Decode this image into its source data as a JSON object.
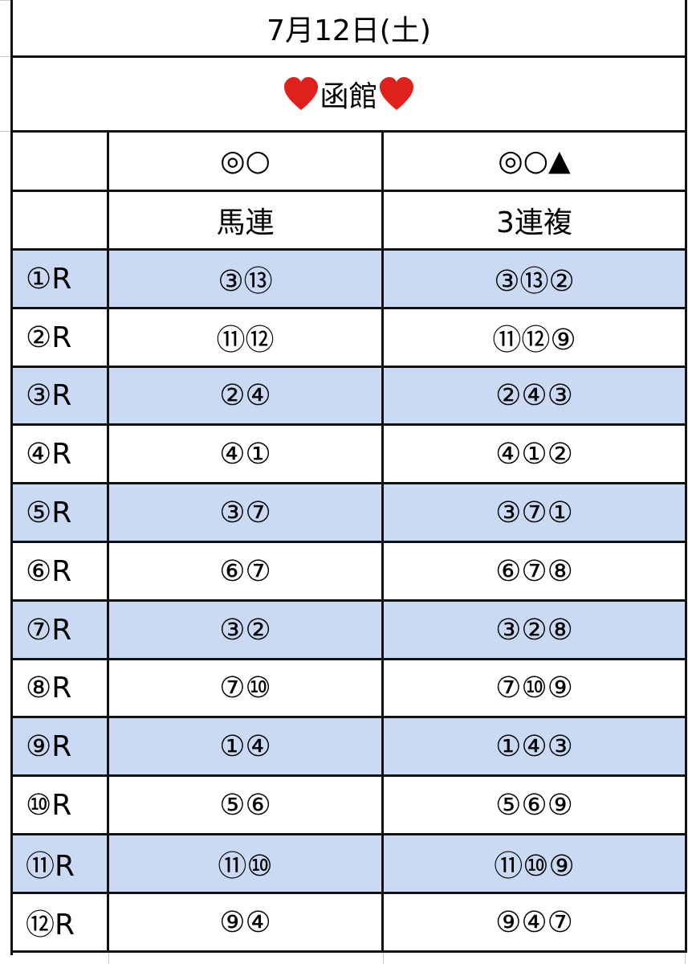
{
  "title": "7月12日(土)",
  "venue": "函館",
  "header": {
    "marks": [
      "◎○",
      "◎○▲"
    ],
    "bets": [
      "馬連",
      "3連複"
    ]
  },
  "rows": [
    [
      "①R",
      "③⑬",
      "③⑬②"
    ],
    [
      "②R",
      "⑪⑫",
      "⑪⑫⑨"
    ],
    [
      "③R",
      "②④",
      "②④③"
    ],
    [
      "④R",
      "④①",
      "④①②"
    ],
    [
      "⑤R",
      "③⑦",
      "③⑦①"
    ],
    [
      "⑥R",
      "⑥⑦",
      "⑥⑦⑧"
    ],
    [
      "⑦R",
      "③②",
      "③②⑧"
    ],
    [
      "⑧R",
      "⑦⑩",
      "⑦⑩⑨"
    ],
    [
      "⑨R",
      "①④",
      "①④③"
    ],
    [
      "⑩R",
      "⑤⑥",
      "⑤⑥⑨"
    ],
    [
      "⑪R",
      "⑪⑩",
      "⑪⑩⑨"
    ],
    [
      "⑫R",
      "⑨④",
      "⑨④⑦"
    ]
  ]
}
